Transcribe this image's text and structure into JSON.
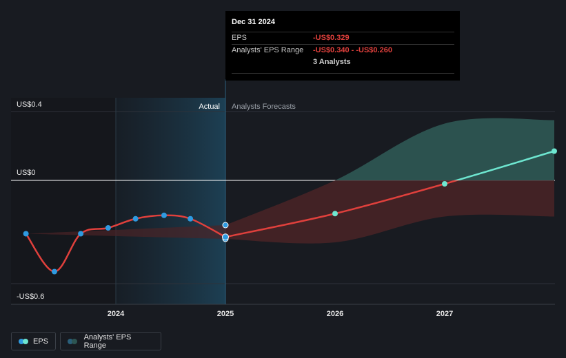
{
  "chart_data": {
    "type": "line",
    "y_ticks": [
      {
        "value": 0.4,
        "label": "US$0.4"
      },
      {
        "value": 0,
        "label": "US$0"
      },
      {
        "value": -0.6,
        "label": "-US$0.6"
      }
    ],
    "x_ticks": [
      {
        "value": 2024,
        "label": "2024"
      },
      {
        "value": 2025,
        "label": "2025"
      },
      {
        "value": 2026,
        "label": "2026"
      },
      {
        "value": 2027,
        "label": "2027"
      }
    ],
    "ylim": [
      -0.6,
      0.4
    ],
    "xlim": [
      2022.9,
      2028.0
    ],
    "region_labels": {
      "actual": "Actual",
      "forecast": "Analysts Forecasts"
    },
    "actual_end": 2025.0,
    "series": [
      {
        "name": "EPS",
        "kind": "actual",
        "color": "#e0403c",
        "points": [
          [
            2023.18,
            -0.31
          ],
          [
            2023.44,
            -0.53
          ],
          [
            2023.68,
            -0.31
          ],
          [
            2023.93,
            -0.276
          ],
          [
            2024.18,
            -0.223
          ],
          [
            2024.44,
            -0.203
          ],
          [
            2024.68,
            -0.223
          ],
          [
            2025.0,
            -0.329
          ]
        ]
      },
      {
        "name": "EPS",
        "kind": "forecast",
        "color_negative": "#e0403c",
        "color_positive": "#6ee6d0",
        "points": [
          [
            2025.0,
            -0.329
          ],
          [
            2026.0,
            -0.193
          ],
          [
            2027.0,
            -0.02
          ],
          [
            2028.0,
            0.17
          ]
        ]
      },
      {
        "name": "Analysts' EPS Range",
        "kind": "range",
        "points": [
          [
            2025.0,
            -0.34,
            -0.26
          ],
          [
            2026.0,
            -0.36,
            0.0
          ],
          [
            2027.0,
            -0.21,
            0.33
          ],
          [
            2028.0,
            -0.21,
            0.35
          ]
        ]
      },
      {
        "name": "Analysts' EPS Range",
        "kind": "historic-range",
        "points": [
          [
            2023.18,
            -0.31,
            -0.31
          ],
          [
            2025.0,
            -0.34,
            -0.26
          ]
        ]
      }
    ],
    "extra_markers": [
      [
        2025.0,
        -0.26
      ],
      [
        2025.0,
        -0.34
      ]
    ]
  },
  "tooltip": {
    "date": "Dec 31 2024",
    "eps_label": "EPS",
    "eps_value": "-US$0.329",
    "range_label": "Analysts' EPS Range",
    "range_value": "-US$0.340 - -US$0.260",
    "analysts": "3 Analysts"
  },
  "legend": {
    "eps": "EPS",
    "range": "Analysts' EPS Range"
  },
  "colors": {
    "background": "#181b21",
    "eps_actual": "#e0403c",
    "eps_forecast_positive": "#6ee6d0",
    "marker": "#2f9ae0",
    "range_positive": "#2d5552",
    "range_negative": "#4a2326"
  }
}
